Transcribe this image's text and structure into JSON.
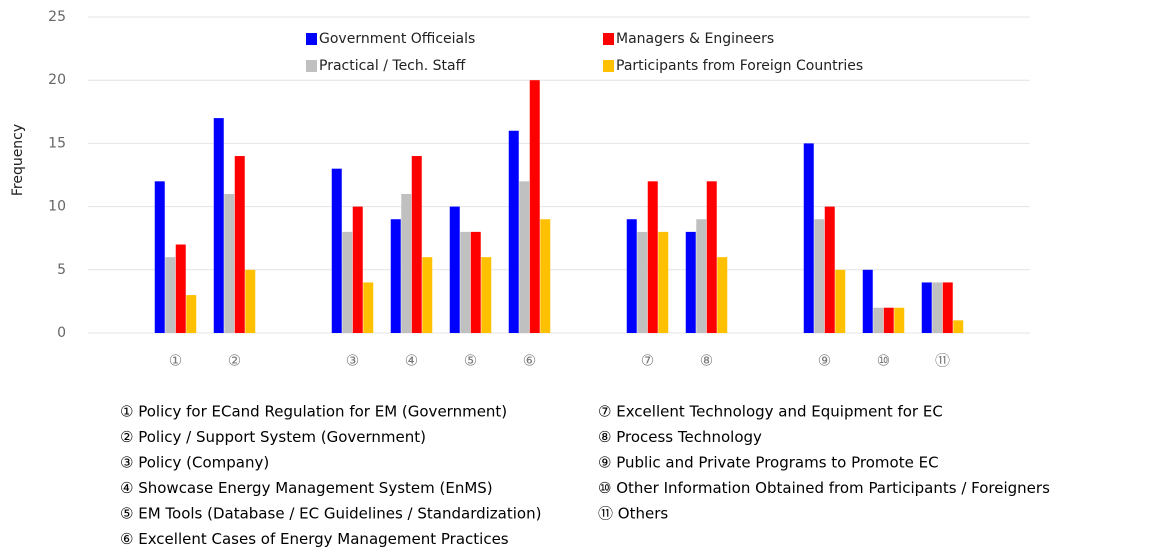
{
  "chart_data": {
    "type": "bar",
    "y_label": "Frequency",
    "categories": [
      "①",
      "②",
      null,
      "③",
      "④",
      "⑤",
      "⑥",
      null,
      "⑦",
      "⑧",
      null,
      "⑨",
      "⑩",
      "⑪"
    ],
    "series": [
      {
        "name": "Government Officeials",
        "color": "#0000ff",
        "values": [
          12,
          17,
          null,
          13,
          9,
          10,
          16,
          null,
          9,
          8,
          null,
          15,
          5,
          4
        ]
      },
      {
        "name": "Managers & Engineers",
        "color": "#ff0000",
        "values": [
          7,
          14,
          null,
          10,
          14,
          8,
          20,
          null,
          12,
          12,
          null,
          10,
          2,
          4
        ]
      },
      {
        "name": "Practical / Tech. Staff",
        "color": "#c0c0c0",
        "values": [
          6,
          11,
          null,
          8,
          11,
          8,
          12,
          null,
          8,
          9,
          null,
          9,
          2,
          4
        ]
      },
      {
        "name": "Participants from Foreign Countries",
        "color": "#ffc000",
        "values": [
          3,
          5,
          null,
          4,
          6,
          6,
          9,
          null,
          8,
          6,
          null,
          5,
          2,
          1
        ]
      }
    ],
    "ylim": [
      0,
      25
    ],
    "yticks": [
      0,
      5,
      10,
      15,
      20,
      25
    ],
    "grid": true,
    "notes": [
      "① Policy for ECand Regulation for EM (Government)",
      "② Policy / Support System (Government)",
      "③ Policy (Company)",
      "④ Showcase Energy Management System (EnMS)",
      "⑤ EM Tools (Database / EC Guidelines / Standardization)",
      "⑥ Excellent Cases of Energy Management Practices",
      "⑦ Excellent Technology and Equipment for EC",
      "⑧ Process Technology",
      "⑨ Public and Private Programs to Promote EC",
      "⑩ Other Information Obtained from Participants / Foreigners",
      "⑪ Others"
    ]
  }
}
